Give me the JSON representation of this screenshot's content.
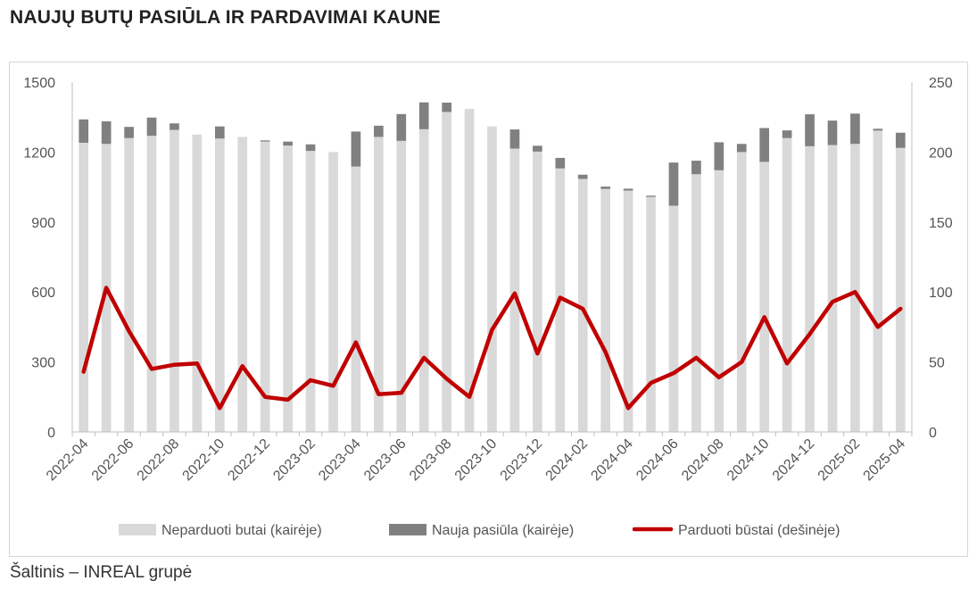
{
  "title": "NAUJŲ BUTŲ PASIŪLA IR PARDAVIMAI KAUNE",
  "source": "Šaltinis – INREAL grupė",
  "colors": {
    "unsold": "#d9d9d9",
    "new_supply": "#808080",
    "sold": "#c00000",
    "axis": "#bfbfbf"
  },
  "chart_data": {
    "type": "bar",
    "title": "NAUJŲ BUTŲ PASIŪLA IR PARDAVIMAI KAUNE",
    "categories": [
      "2022-04",
      "2022-05",
      "2022-06",
      "2022-07",
      "2022-08",
      "2022-09",
      "2022-10",
      "2022-11",
      "2022-12",
      "2023-01",
      "2023-02",
      "2023-03",
      "2023-04",
      "2023-05",
      "2023-06",
      "2023-07",
      "2023-08",
      "2023-09",
      "2023-10",
      "2023-11",
      "2023-12",
      "2024-01",
      "2024-02",
      "2024-03",
      "2024-04",
      "2024-05",
      "2024-06",
      "2024-07",
      "2024-08",
      "2024-09",
      "2024-10",
      "2024-11",
      "2024-12",
      "2025-01",
      "2025-02",
      "2025-03",
      "2025-04"
    ],
    "x_tick_labels": [
      "2022-04",
      "2022-06",
      "2022-08",
      "2022-10",
      "2022-12",
      "2023-02",
      "2023-04",
      "2023-06",
      "2023-08",
      "2023-10",
      "2023-12",
      "2024-02",
      "2024-04",
      "2024-06",
      "2024-08",
      "2024-10",
      "2024-12",
      "2025-02",
      "2025-04"
    ],
    "y_left": {
      "ylim": [
        0,
        1500
      ],
      "ticks": [
        "0",
        "300",
        "600",
        "900",
        "1200",
        "1500"
      ]
    },
    "y_right": {
      "ylim": [
        0,
        250
      ],
      "ticks": [
        "0",
        "50",
        "100",
        "150",
        "200",
        "250"
      ]
    },
    "series": [
      {
        "name": "Neparduoti butai (kairėje)",
        "type": "bar",
        "axis": "left",
        "values": [
          1240,
          1235,
          1260,
          1270,
          1295,
          1275,
          1258,
          1265,
          1245,
          1228,
          1205,
          1200,
          1138,
          1265,
          1248,
          1298,
          1372,
          1385,
          1310,
          1215,
          1202,
          1130,
          1085,
          1042,
          1035,
          1008,
          970,
          1105,
          1122,
          1200,
          1158,
          1260,
          1225,
          1230,
          1235,
          1292,
          1218
        ]
      },
      {
        "name": "Nauja pasiūla (kairėje)",
        "type": "bar",
        "axis": "left",
        "values": [
          100,
          97,
          48,
          78,
          28,
          0,
          52,
          0,
          5,
          17,
          28,
          0,
          150,
          48,
          115,
          115,
          40,
          0,
          0,
          82,
          25,
          45,
          18,
          10,
          8,
          5,
          185,
          58,
          120,
          35,
          145,
          33,
          137,
          105,
          130,
          8,
          65
        ]
      },
      {
        "name": "Parduoti būstai (dešinėje)",
        "type": "line",
        "axis": "right",
        "values": [
          43,
          103,
          72,
          45,
          48,
          49,
          17,
          47,
          25,
          23,
          37,
          33,
          64,
          27,
          28,
          53,
          38,
          25,
          73,
          99,
          56,
          96,
          88,
          57,
          17,
          35,
          42,
          53,
          39,
          50,
          82,
          49,
          70,
          93,
          100,
          75,
          88
        ]
      }
    ],
    "legend": "bottom",
    "grid": false
  }
}
